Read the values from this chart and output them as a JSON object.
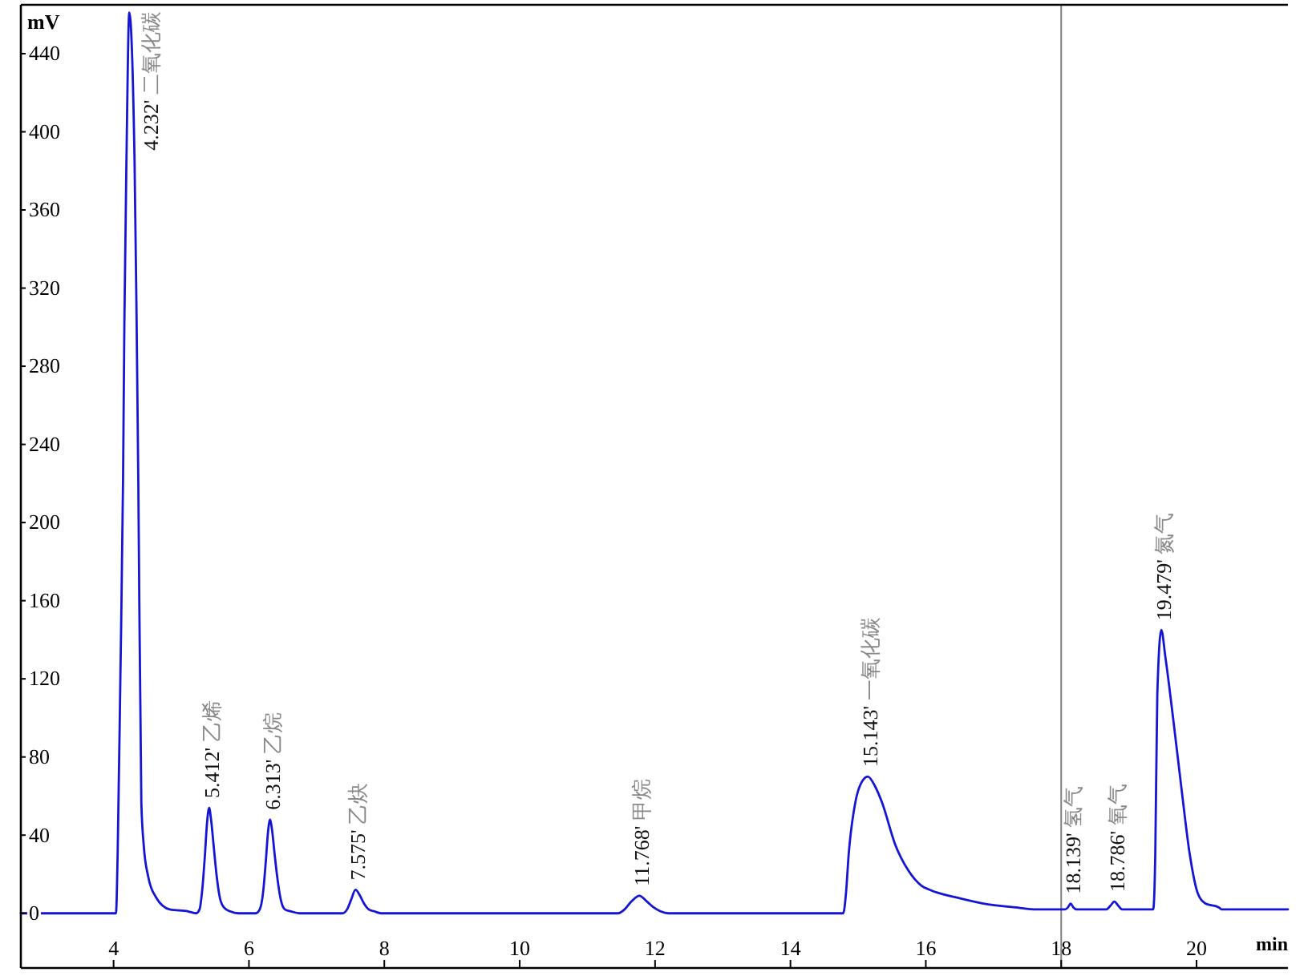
{
  "chart_data": {
    "type": "line",
    "xlabel": "min",
    "ylabel": "mV",
    "color": "#1515d5",
    "x": [
      2.63,
      4.0,
      4.035,
      4.06,
      4.1,
      4.14,
      4.16,
      4.19,
      4.232,
      4.31,
      4.34,
      4.365,
      4.41,
      4.445,
      4.51,
      4.63,
      4.83,
      5.1,
      5.22,
      5.27,
      5.31,
      5.35,
      5.38,
      5.412,
      5.44,
      5.48,
      5.52,
      5.57,
      5.63,
      5.72,
      5.85,
      6.1,
      6.16,
      6.21,
      6.25,
      6.28,
      6.313,
      6.34,
      6.38,
      6.42,
      6.47,
      6.53,
      6.62,
      6.75,
      7.38,
      7.45,
      7.51,
      7.575,
      7.64,
      7.7,
      7.77,
      7.85,
      7.95,
      11.45,
      11.55,
      11.65,
      11.768,
      11.88,
      11.98,
      12.08,
      12.2,
      14.78,
      14.82,
      14.86,
      14.96,
      15.05,
      15.143,
      15.25,
      15.35,
      15.55,
      15.74,
      15.94,
      16.06,
      16.46,
      16.85,
      17.33,
      17.64,
      18.06,
      18.1,
      18.139,
      18.18,
      18.23,
      18.67,
      18.73,
      18.786,
      18.84,
      18.9,
      19.36,
      19.39,
      19.42,
      19.479,
      19.54,
      19.66,
      19.78,
      19.9,
      20.02,
      20.13,
      20.33,
      20.37,
      21.35
    ],
    "values": [
      0,
      0,
      0,
      30,
      120,
      222,
      304,
      385,
      461,
      385,
      304,
      222,
      57,
      35,
      19,
      8,
      2,
      1,
      0,
      2,
      12,
      30,
      46,
      54,
      48,
      34,
      20,
      8,
      3,
      1,
      0,
      0,
      2,
      11,
      27,
      41,
      48,
      43,
      30,
      18,
      7,
      2,
      1,
      0,
      0,
      2,
      7,
      12,
      9,
      5,
      2,
      1,
      0,
      0,
      2,
      6,
      9,
      6,
      3,
      1,
      0,
      0,
      10,
      30,
      57,
      67,
      70,
      65,
      57,
      35,
      22,
      14,
      12,
      8,
      5,
      3,
      2,
      2,
      3,
      5,
      3,
      2,
      2,
      4,
      6,
      4,
      2,
      2,
      30,
      112,
      145,
      131,
      98,
      63,
      30,
      10,
      5,
      3,
      2,
      2
    ],
    "xlim": [
      2.63,
      21.35
    ],
    "ylim": [
      -28,
      465
    ],
    "xticks": [
      4,
      6,
      8,
      10,
      12,
      14,
      16,
      18,
      20
    ],
    "yticks": [
      0,
      40,
      80,
      120,
      160,
      200,
      240,
      280,
      320,
      360,
      400,
      440
    ],
    "ref_lines": [
      {
        "axis": "x",
        "value": 18,
        "color": "#808080"
      }
    ],
    "annotations": [
      {
        "text": "4.232' 二氧化碳",
        "x": 4.232,
        "y": 461
      },
      {
        "text": "5.412' 乙烯",
        "x": 5.412,
        "y": 54
      },
      {
        "text": "6.313' 乙烷",
        "x": 6.313,
        "y": 48
      },
      {
        "text": "7.575' 乙炔",
        "x": 7.575,
        "y": 12
      },
      {
        "text": "11.768' 甲烷",
        "x": 11.768,
        "y": 9
      },
      {
        "text": "15.143' 一氧化碳",
        "x": 15.143,
        "y": 70
      },
      {
        "text": "18.139' 氢气",
        "x": 18.139,
        "y": 5
      },
      {
        "text": "18.786' 氧气",
        "x": 18.786,
        "y": 6
      },
      {
        "text": "19.479' 氮气",
        "x": 19.479,
        "y": 145
      }
    ]
  }
}
